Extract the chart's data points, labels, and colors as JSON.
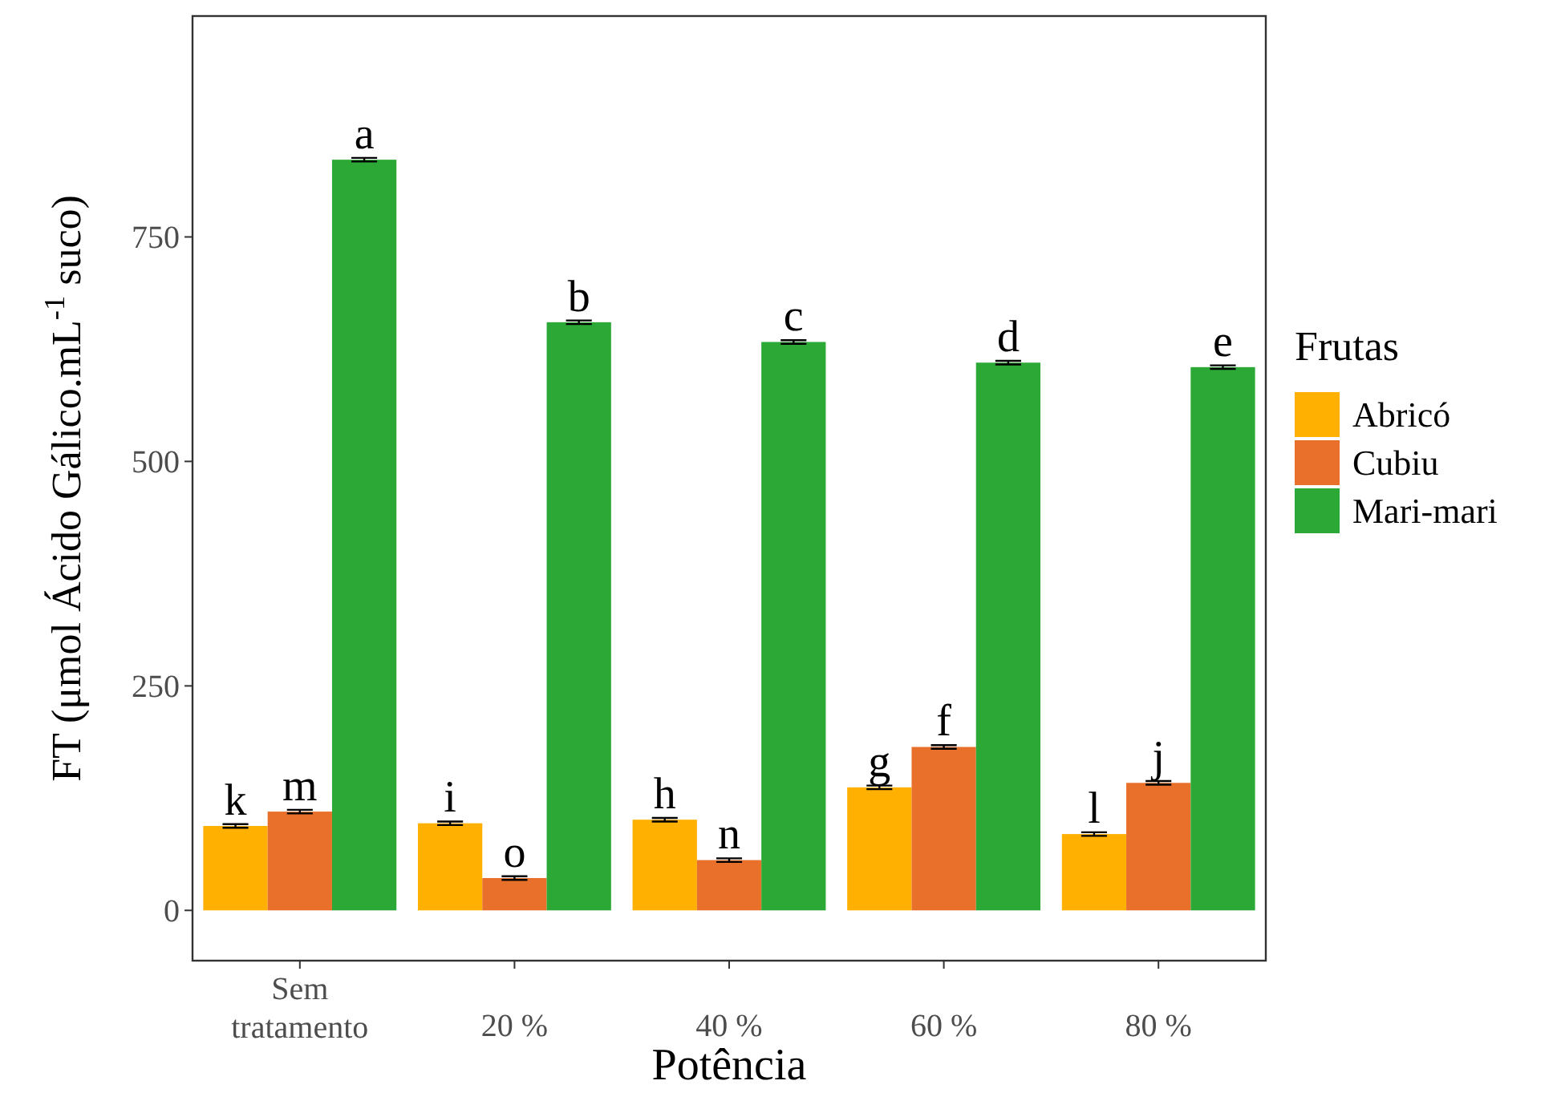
{
  "chart_data": {
    "type": "bar",
    "xlabel": "Potência",
    "ylabel": "FT (μmol Ácido Gálico.mL$^{-1}$ suco)",
    "legend_title": "Frutas",
    "legend": "right",
    "grid": false,
    "categories": [
      "Sem tratamento",
      "20 %",
      "40 %",
      "60 %",
      "80 %"
    ],
    "ylim": [
      -56,
      996
    ],
    "yticks": [
      0,
      250,
      500,
      750
    ],
    "series": [
      {
        "name": "Abricó",
        "color": "#ffb000",
        "values": [
          94,
          97,
          101,
          137,
          85
        ],
        "errors": [
          2,
          2,
          2,
          2,
          2
        ],
        "value_labels": [
          "k",
          "i",
          "h",
          "g",
          "l"
        ]
      },
      {
        "name": "Cubiu",
        "color": "#e8702a",
        "values": [
          110,
          36,
          56,
          182,
          142
        ],
        "errors": [
          2,
          2,
          2,
          2,
          2
        ],
        "value_labels": [
          "m",
          "o",
          "n",
          "f",
          "j"
        ]
      },
      {
        "name": "Mari-mari",
        "color": "#2ca836",
        "values": [
          836,
          655,
          633,
          610,
          605
        ],
        "errors": [
          2,
          2,
          2,
          2,
          2
        ],
        "value_labels": [
          "a",
          "b",
          "c",
          "d",
          "e"
        ]
      }
    ]
  }
}
